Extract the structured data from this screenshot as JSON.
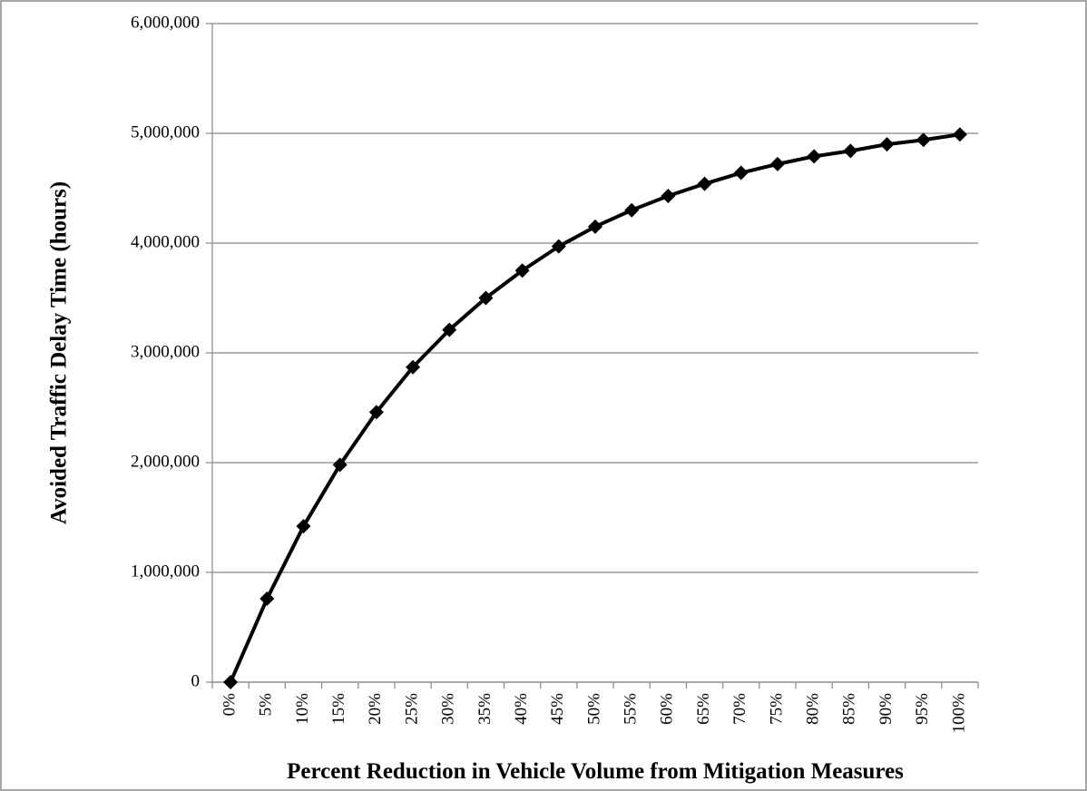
{
  "chart_data": {
    "type": "line",
    "xlabel": "Percent Reduction in Vehicle Volume from Mitigation Measures",
    "ylabel": "Avoided Traffic Delay Time (hours)",
    "categories": [
      "0%",
      "5%",
      "10%",
      "15%",
      "20%",
      "25%",
      "30%",
      "35%",
      "40%",
      "45%",
      "50%",
      "55%",
      "60%",
      "65%",
      "70%",
      "75%",
      "80%",
      "85%",
      "90%",
      "95%",
      "100%"
    ],
    "series": [
      {
        "color": "#000000",
        "values": [
          0,
          760000,
          1420000,
          1980000,
          2460000,
          2870000,
          3210000,
          3500000,
          3750000,
          3970000,
          4150000,
          4300000,
          4430000,
          4540000,
          4640000,
          4720000,
          4790000,
          4840000,
          4900000,
          4940000,
          4990000
        ]
      }
    ],
    "ylim": [
      0,
      6000000
    ],
    "yticks": [
      0,
      {
        "value": 1000000,
        "label": "1,000,000"
      },
      {
        "value": 2000000,
        "label": "2,000,000"
      },
      {
        "value": 3000000,
        "label": "3,000,000"
      },
      {
        "value": 4000000,
        "label": "4,000,000"
      },
      {
        "value": 5000000,
        "label": "5,000,000"
      },
      {
        "value": 6000000,
        "label": "6,000,000"
      }
    ],
    "grid": true
  }
}
